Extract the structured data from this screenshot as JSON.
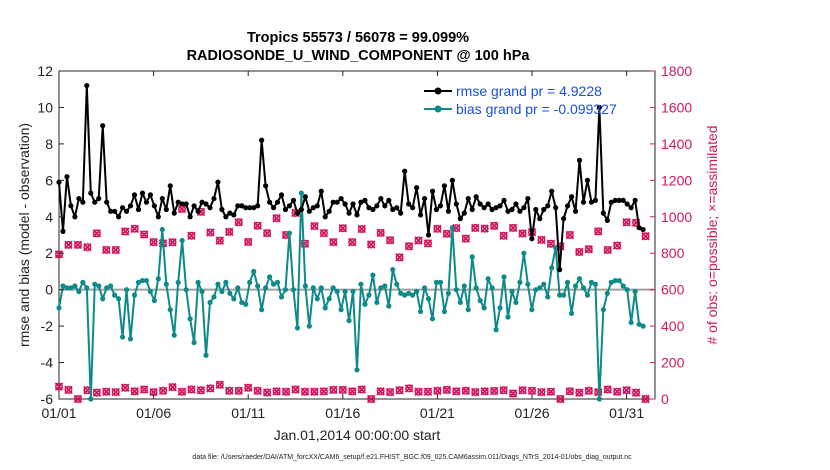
{
  "chart_data": {
    "type": "line",
    "title": "Tropics 55573 / 56078 = 99.099%",
    "subtitle": "RADIOSONDE_U_WIND_COMPONENT @ 100 hPa",
    "xlabel": "Jan.01,2014 00:00:00 start",
    "ylabel": "rmse and bias (model - observation)",
    "ylabel_right": "# of obs: o=possible; ×=assimilated",
    "ylim": [
      -6,
      12
    ],
    "ylim_right": [
      0,
      1800
    ],
    "xlim": [
      1,
      32.5
    ],
    "x_ticks": [
      {
        "value": 1,
        "label": "01/01"
      },
      {
        "value": 6,
        "label": "01/06"
      },
      {
        "value": 11,
        "label": "01/11"
      },
      {
        "value": 16,
        "label": "01/16"
      },
      {
        "value": 21,
        "label": "01/21"
      },
      {
        "value": 26,
        "label": "01/26"
      },
      {
        "value": 31,
        "label": "01/31"
      }
    ],
    "y_ticks": [
      "-6",
      "-4",
      "-2",
      "0",
      "2",
      "4",
      "6",
      "8",
      "10",
      "12"
    ],
    "y_ticks_right": [
      "0",
      "200",
      "400",
      "600",
      "800",
      "1000",
      "1200",
      "1400",
      "1600",
      "1800"
    ],
    "colors": {
      "rmse": "#000000",
      "bias": "#0f8a8a",
      "obs": "#d1175f",
      "zero_line": "#a0a0a0",
      "legend_text": "#1a4fd8"
    },
    "footnote": "data file: /Users/raeder/DAI/ATM_forcXX/CAM6_setup/f.e21.FHIST_BGC.f09_025.CAM6assim.011/Diags_NTrS_2014-01/obs_diag_output.nc",
    "series": [
      {
        "name": "rmse grand pr = 4.9228",
        "axis": "left",
        "marker": "circle",
        "values": [
          5.9,
          3.2,
          6.2,
          4.6,
          4.0,
          5.0,
          4.8,
          11.2,
          5.3,
          4.8,
          5.0,
          9.0,
          4.8,
          4.3,
          4.3,
          4.0,
          4.5,
          4.3,
          4.6,
          5.2,
          4.4,
          5.3,
          4.8,
          5.2,
          4.6,
          4.0,
          5.0,
          4.4,
          5.7,
          4.2,
          4.8,
          4.7,
          4.7,
          4.0,
          4.6,
          4.3,
          4.8,
          4.7,
          4.5,
          5.0,
          5.9,
          4.4,
          4.0,
          4.2,
          4.1,
          4.6,
          4.6,
          4.5,
          4.5,
          4.5,
          4.6,
          8.2,
          5.7,
          4.8,
          4.5,
          4.8,
          5.2,
          4.4,
          4.6,
          4.9,
          4.2,
          4.4,
          5.1,
          4.3,
          4.5,
          4.6,
          5.4,
          4.0,
          4.3,
          4.8,
          4.8,
          5.0,
          4.7,
          4.2,
          4.7,
          4.1,
          4.8,
          4.9,
          4.5,
          4.4,
          4.6,
          5.0,
          4.6,
          4.9,
          4.4,
          4.5,
          4.2,
          6.5,
          4.7,
          4.5,
          5.6,
          4.1,
          5.0,
          3.0,
          5.4,
          4.4,
          4.6,
          5.7,
          4.3,
          6.0,
          4.7,
          3.9,
          4.2,
          5.0,
          4.4,
          5.1,
          4.7,
          4.5,
          4.7,
          4.4,
          4.5,
          4.6,
          4.9,
          4.3,
          4.4,
          4.7,
          4.3,
          4.5,
          5.0,
          2.8,
          4.4,
          3.9,
          4.4,
          4.6,
          5.4,
          4.5,
          1.1,
          3.9,
          4.6,
          5.1,
          4.3,
          7.1,
          4.8,
          6.0,
          4.8,
          4.9,
          10.0,
          4.2,
          3.8,
          4.8,
          4.9,
          4.9,
          4.9,
          4.7,
          4.5,
          4.9,
          3.4,
          3.3
        ]
      },
      {
        "name": "bias grand pr = -0.099327",
        "axis": "left",
        "marker": "circle",
        "values": [
          -1.0,
          0.2,
          0.1,
          0.1,
          0.2,
          -0.1,
          0.4,
          0.1,
          -6.0,
          0.3,
          0.2,
          -0.5,
          0.1,
          0.2,
          -0.3,
          -0.5,
          -2.6,
          0.0,
          -2.7,
          -0.3,
          0.4,
          0.5,
          0.5,
          -0.1,
          -0.6,
          0.6,
          3.3,
          0.3,
          -1.1,
          -2.5,
          0.4,
          2.7,
          0.0,
          -1.6,
          -2.9,
          0.4,
          -0.1,
          -3.6,
          -0.7,
          -0.4,
          0.3,
          -0.1,
          0.4,
          -0.2,
          -0.5,
          0.1,
          -0.7,
          -0.8,
          0.4,
          1.0,
          0.2,
          -1.1,
          0.1,
          0.7,
          0.3,
          0.4,
          -0.4,
          0.0,
          3.1,
          0.0,
          -2.1,
          5.3,
          0.2,
          -2.0,
          0.1,
          -0.5,
          0.1,
          -1.0,
          -0.5,
          0.1,
          -0.1,
          -1.1,
          -0.1,
          -1.7,
          -0.1,
          -4.4,
          0.3,
          -0.8,
          -0.3,
          0.8,
          -0.7,
          0.1,
          0.2,
          -0.9,
          1.1,
          0.3,
          -0.2,
          -0.3,
          -0.2,
          -0.3,
          -0.1,
          -1.2,
          0.1,
          -0.5,
          -1.6,
          0.4,
          0.4,
          -1.2,
          -0.2,
          3.4,
          0.0,
          -0.7,
          0.2,
          -1.1,
          1.8,
          0.1,
          -0.6,
          -1.0,
          0.6,
          0.1,
          -2.2,
          -1.0,
          0.7,
          -1.5,
          -0.1,
          -0.7,
          0.4,
          2.0,
          0.3,
          -1.1,
          0.0,
          0.1,
          0.3,
          -0.4,
          1.2,
          2.3,
          -0.3,
          -0.3,
          0.4,
          -1.3,
          0.2,
          0.6,
          0.1,
          -0.3,
          0.4,
          0.3,
          -6.0,
          -1.1,
          -0.2,
          0.4,
          0.5,
          0.5,
          0.2,
          0.0,
          -1.8,
          -0.1,
          -1.9,
          -2.0
        ]
      },
      {
        "name": "# of obs",
        "axis": "right",
        "marker": "x",
        "values": [
          [
            1,
            794
          ],
          [
            1.5,
            846
          ],
          [
            2,
            846
          ],
          [
            2.5,
            833
          ],
          [
            3,
            909
          ],
          [
            3.5,
            818
          ],
          [
            4,
            818
          ],
          [
            4.5,
            919
          ],
          [
            5,
            934
          ],
          [
            5.5,
            903
          ],
          [
            6,
            861
          ],
          [
            6.5,
            854
          ],
          [
            7,
            860
          ],
          [
            7.5,
            1043
          ],
          [
            8,
            896
          ],
          [
            8.5,
            1027
          ],
          [
            9,
            914
          ],
          [
            9.5,
            869
          ],
          [
            10,
            917
          ],
          [
            10.5,
            970
          ],
          [
            11,
            862
          ],
          [
            11.5,
            951
          ],
          [
            12,
            910
          ],
          [
            12.5,
            992
          ],
          [
            13,
            900
          ],
          [
            13.5,
            1021
          ],
          [
            14,
            852
          ],
          [
            14.5,
            949
          ],
          [
            15,
            910
          ],
          [
            15.5,
            861
          ],
          [
            16,
            937
          ],
          [
            16.5,
            861
          ],
          [
            17,
            933
          ],
          [
            17.5,
            848
          ],
          [
            18,
            912
          ],
          [
            18.5,
            871
          ],
          [
            19,
            777
          ],
          [
            19.5,
            838
          ],
          [
            20,
            870
          ],
          [
            20.5,
            854
          ],
          [
            21,
            934
          ],
          [
            21.5,
            907
          ],
          [
            22,
            938
          ],
          [
            22.5,
            880
          ],
          [
            23,
            939
          ],
          [
            23.5,
            935
          ],
          [
            24,
            950
          ],
          [
            24.5,
            896
          ],
          [
            25,
            939
          ],
          [
            25.5,
            908
          ],
          [
            26,
            915
          ],
          [
            26.5,
            873
          ],
          [
            27,
            852
          ],
          [
            27.5,
            837
          ],
          [
            28,
            900
          ],
          [
            28.5,
            807
          ],
          [
            29,
            822
          ],
          [
            29.5,
            920
          ],
          [
            30,
            818
          ],
          [
            30.5,
            842
          ],
          [
            31,
            970
          ],
          [
            31.5,
            967
          ],
          [
            32,
            893
          ]
        ]
      },
      {
        "name": "# of obs (low)",
        "axis": "right",
        "marker": "x",
        "values": [
          [
            1,
            68
          ],
          [
            1.5,
            50
          ],
          [
            2,
            0
          ],
          [
            2.5,
            48
          ],
          [
            3,
            35
          ],
          [
            3.5,
            40
          ],
          [
            4,
            38
          ],
          [
            4.5,
            62
          ],
          [
            5,
            42
          ],
          [
            5.5,
            52
          ],
          [
            6,
            38
          ],
          [
            6.5,
            45
          ],
          [
            7,
            65
          ],
          [
            7.5,
            40
          ],
          [
            8,
            52
          ],
          [
            8.5,
            48
          ],
          [
            9,
            58
          ],
          [
            9.5,
            78
          ],
          [
            10,
            45
          ],
          [
            10.5,
            45
          ],
          [
            11,
            62
          ],
          [
            11.5,
            45
          ],
          [
            12,
            36
          ],
          [
            12.5,
            42
          ],
          [
            13,
            40
          ],
          [
            13.5,
            52
          ],
          [
            14,
            40
          ],
          [
            14.5,
            40
          ],
          [
            15,
            42
          ],
          [
            15.5,
            50
          ],
          [
            16,
            50
          ],
          [
            16.5,
            42
          ],
          [
            17,
            52
          ],
          [
            17.5,
            0
          ],
          [
            18,
            42
          ],
          [
            18.5,
            38
          ],
          [
            19,
            48
          ],
          [
            19.5,
            58
          ],
          [
            20,
            40
          ],
          [
            20.5,
            40
          ],
          [
            21,
            45
          ],
          [
            21.5,
            50
          ],
          [
            22,
            42
          ],
          [
            22.5,
            45
          ],
          [
            23,
            38
          ],
          [
            23.5,
            42
          ],
          [
            24,
            44
          ],
          [
            24.5,
            48
          ],
          [
            25,
            30
          ],
          [
            25.5,
            48
          ],
          [
            26,
            45
          ],
          [
            26.5,
            38
          ],
          [
            27,
            40
          ],
          [
            27.5,
            0
          ],
          [
            28,
            42
          ],
          [
            28.5,
            35
          ],
          [
            29,
            45
          ],
          [
            29.5,
            38
          ],
          [
            30,
            52
          ],
          [
            30.5,
            40
          ],
          [
            31,
            48
          ],
          [
            31.5,
            35
          ],
          [
            32,
            0
          ]
        ]
      }
    ]
  }
}
